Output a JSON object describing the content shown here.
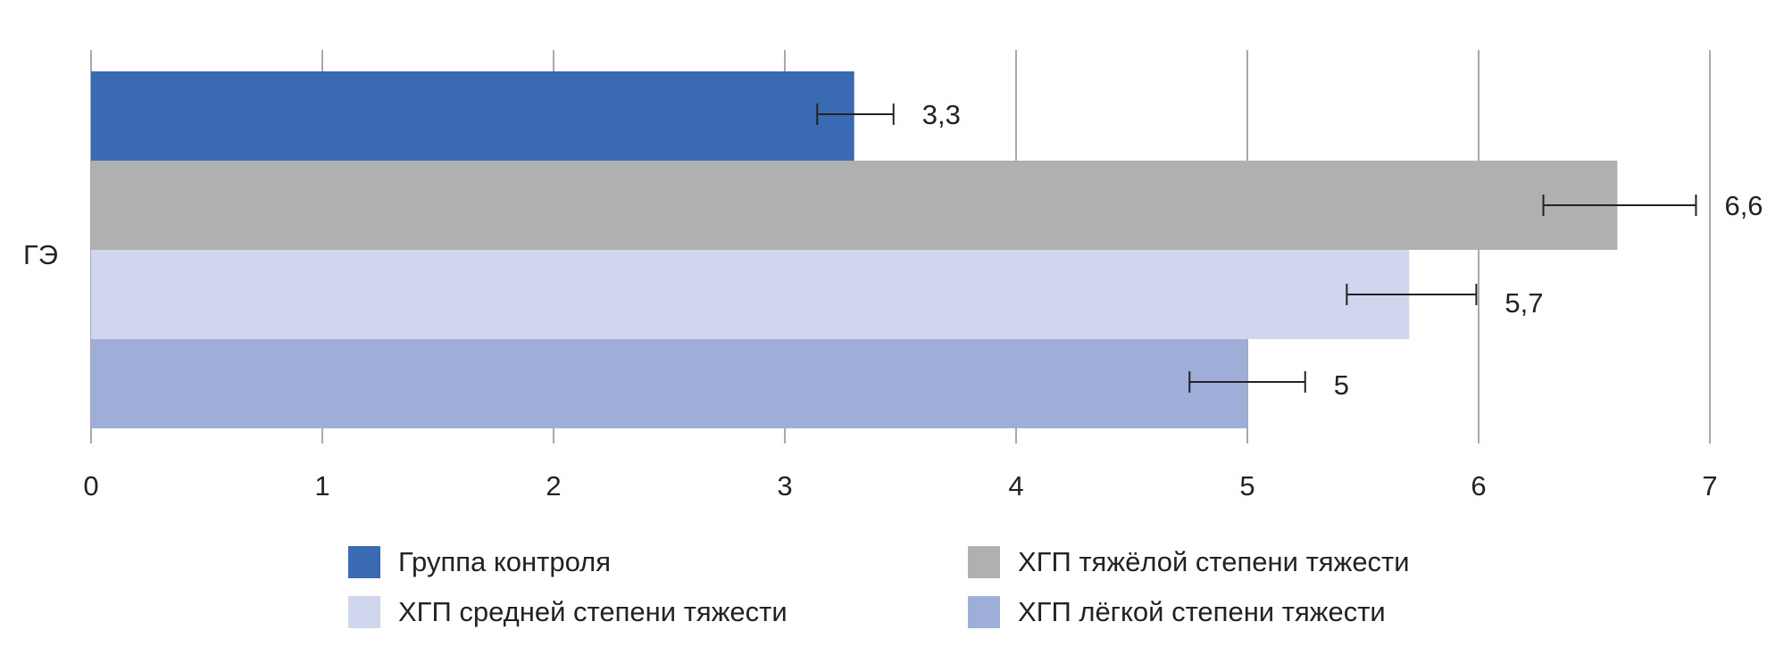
{
  "chart_data": {
    "type": "bar",
    "orientation": "horizontal",
    "categories": [
      "ГЭ"
    ],
    "series": [
      {
        "name": "Группа контроля",
        "value": 3.3,
        "label": "3,3",
        "error_low": 3.14,
        "error_high": 3.47,
        "color": "#3a6bb2"
      },
      {
        "name": "ХГП тяжёлой степени тяжести",
        "value": 6.6,
        "label": "6,6",
        "error_low": 6.28,
        "error_high": 6.94,
        "color": "#b0b0b0"
      },
      {
        "name": "ХГП средней степени тяжести",
        "value": 5.7,
        "label": "5,7",
        "error_low": 5.43,
        "error_high": 5.99,
        "color": "#d0d6ee"
      },
      {
        "name": "ХГП лёгкой степени тяжести",
        "value": 5.0,
        "label": "5",
        "error_low": 4.75,
        "error_high": 5.25,
        "color": "#9eaed9"
      }
    ],
    "xlim": [
      0,
      7
    ],
    "xticks": [
      "0",
      "1",
      "2",
      "3",
      "4",
      "5",
      "6",
      "7"
    ],
    "grid": true,
    "legend_position": "bottom",
    "title": "",
    "xlabel": "",
    "ylabel": ""
  },
  "legend": {
    "control": "Группа контроля",
    "severe": "ХГП тяжёлой степени тяжести",
    "moderate": "ХГП средней степени тяжести",
    "mild": "ХГП лёгкой степени тяжести"
  },
  "category_label": "ГЭ"
}
